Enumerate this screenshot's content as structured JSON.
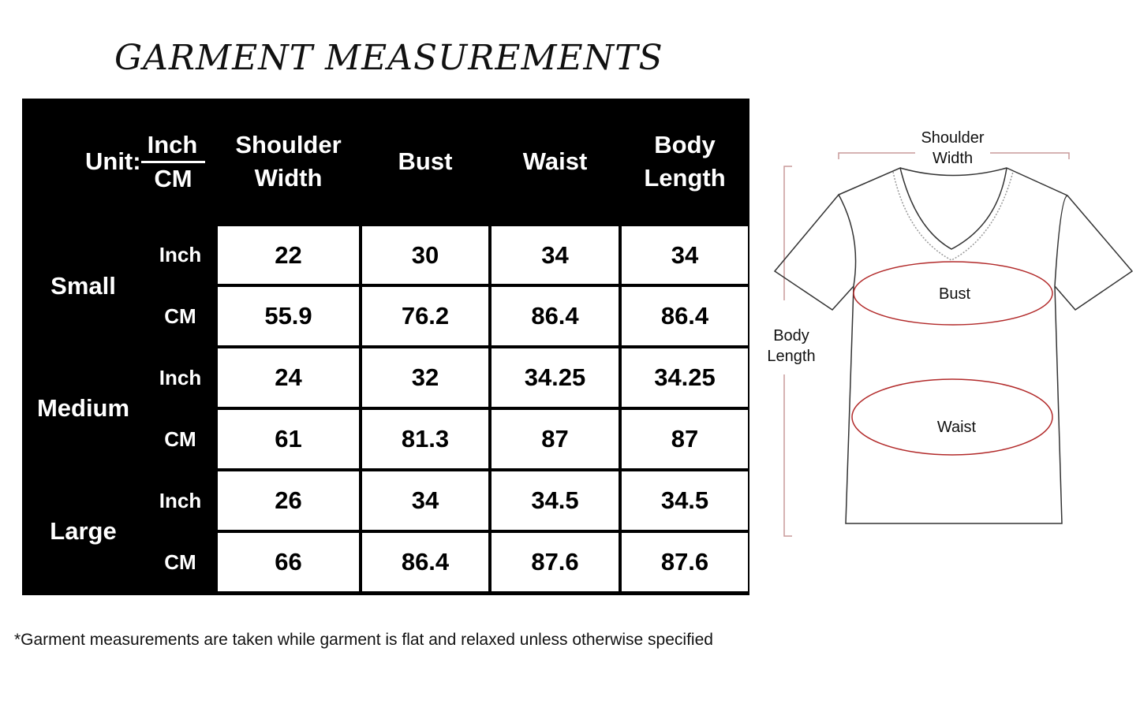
{
  "title": "GARMENT MEASUREMENTS",
  "table": {
    "unit_label": "Unit:",
    "unit_inch": "Inch",
    "unit_cm": "CM",
    "columns": [
      "Shoulder Width",
      "Bust",
      "Waist",
      "Body Length"
    ],
    "sizes": [
      {
        "name": "Small",
        "rows": [
          {
            "unit": "Inch",
            "values": [
              "22",
              "30",
              "34",
              "34"
            ]
          },
          {
            "unit": "CM",
            "values": [
              "55.9",
              "76.2",
              "86.4",
              "86.4"
            ]
          }
        ]
      },
      {
        "name": "Medium",
        "rows": [
          {
            "unit": "Inch",
            "values": [
              "24",
              "32",
              "34.25",
              "34.25"
            ]
          },
          {
            "unit": "CM",
            "values": [
              "61",
              "81.3",
              "87",
              "87"
            ]
          }
        ]
      },
      {
        "name": "Large",
        "rows": [
          {
            "unit": "Inch",
            "values": [
              "26",
              "34",
              "34.5",
              "34.5"
            ]
          },
          {
            "unit": "CM",
            "values": [
              "66",
              "86.4",
              "87.6",
              "87.6"
            ]
          }
        ]
      }
    ]
  },
  "diagram": {
    "shoulder_width": "Shoulder Width",
    "bust": "Bust",
    "waist": "Waist",
    "body_length": "Body Length",
    "outline_color": "#333333",
    "measure_color": "#b22a2a",
    "guide_color": "#c99a9a"
  },
  "footnote": "*Garment measurements are taken while garment is flat and relaxed unless otherwise specified"
}
